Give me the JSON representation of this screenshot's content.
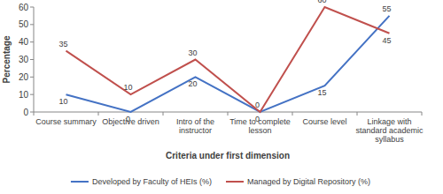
{
  "chart_data": {
    "type": "line",
    "x_label": "Criteria under first dimension",
    "y_label": "Percentage",
    "categories": [
      "Course summary",
      "Objective driven",
      "Intro of the instructor",
      "Time to complete lesson",
      "Course level",
      "Linkage with standard academic syllabus"
    ],
    "series": [
      {
        "name": "Developed by Faculty of HEIs (%)",
        "color": "#4472c4",
        "values": [
          10,
          0,
          20,
          0,
          15,
          55
        ]
      },
      {
        "name": "Managed by Digital Repository (%)",
        "color": "#c0504d",
        "values": [
          35,
          10,
          30,
          0,
          60,
          45
        ]
      }
    ],
    "ylim": [
      0,
      60
    ],
    "yticks": [
      0,
      10,
      20,
      30,
      40,
      50,
      60
    ],
    "grid": false,
    "legend": "bottom",
    "data_labels": true
  }
}
